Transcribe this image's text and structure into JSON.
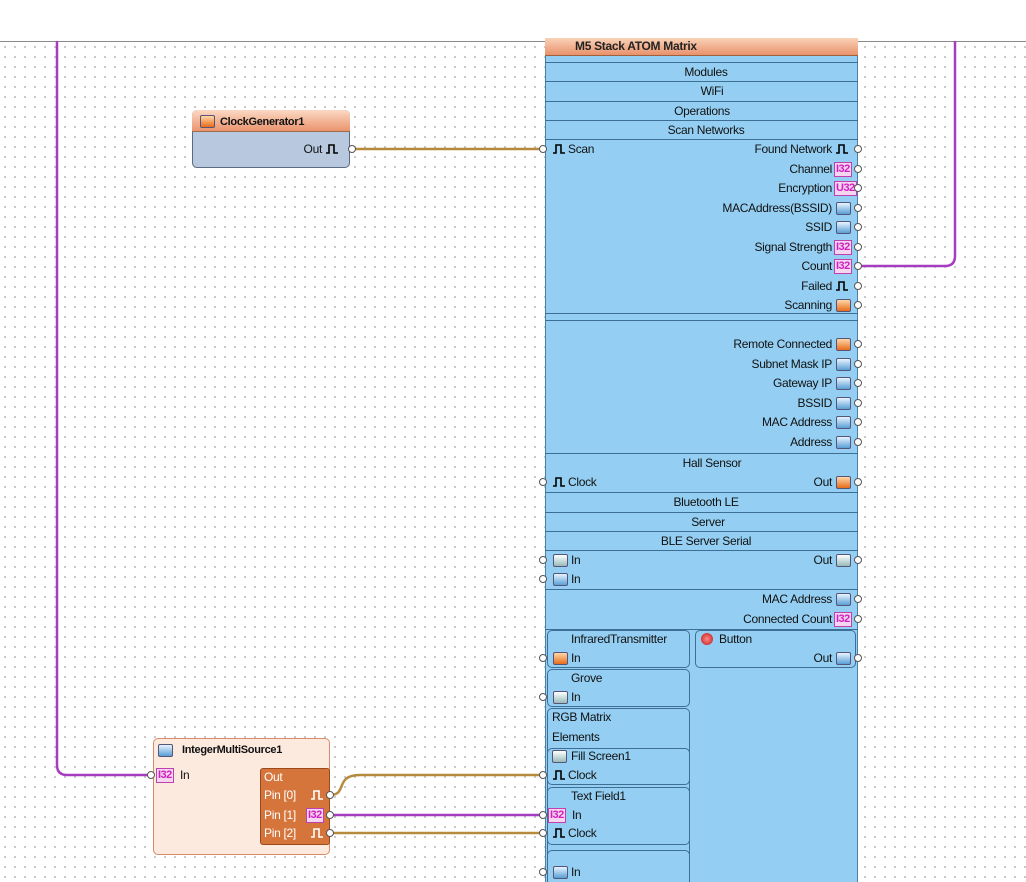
{
  "atom": {
    "title": "M5 Stack ATOM Matrix",
    "modules": "Modules",
    "wifi": "WiFi",
    "operations": "Operations",
    "scan_networks": "Scan Networks",
    "scan_in": "Scan",
    "scan_outputs": [
      {
        "label": "Found Network"
      },
      {
        "label": "Channel",
        "badge": "I32"
      },
      {
        "label": "Encryption",
        "badge": "U32"
      },
      {
        "label": "MACAddress(BSSID)"
      },
      {
        "label": "SSID"
      },
      {
        "label": "Signal Strength",
        "badge": "I32"
      },
      {
        "label": "Count",
        "badge": "I32"
      },
      {
        "label": "Failed"
      },
      {
        "label": "Scanning"
      }
    ],
    "wifi_outputs": [
      {
        "label": "Remote Connected"
      },
      {
        "label": "Subnet Mask IP"
      },
      {
        "label": "Gateway IP"
      },
      {
        "label": "BSSID"
      },
      {
        "label": "MAC Address"
      },
      {
        "label": "Address"
      }
    ],
    "hall_sensor": {
      "title": "Hall Sensor",
      "in": "Clock",
      "out": "Out"
    },
    "bluetooth": "Bluetooth LE",
    "server": "Server",
    "ble_serial": {
      "title": "BLE Server Serial",
      "in1": "In",
      "out": "Out",
      "in2": "In"
    },
    "ble_outputs": [
      {
        "label": "MAC Address"
      },
      {
        "label": "Connected Count",
        "badge": "I32"
      }
    ],
    "infrared": {
      "title": "InfraredTransmitter",
      "in": "In"
    },
    "button": {
      "title": "Button",
      "out": "Out"
    },
    "grove": {
      "title": "Grove",
      "in": "In"
    },
    "rgb_matrix": "RGB Matrix",
    "elements": "Elements",
    "fill_screen": {
      "title": "Fill Screen1",
      "in": "Clock"
    },
    "text_field": {
      "title": "Text Field1",
      "in1": "In",
      "in1_badge": "I32",
      "in2": "Clock"
    },
    "last_in": "In"
  },
  "clock_generator": {
    "title": "ClockGenerator1",
    "out": "Out"
  },
  "integer_multi_source": {
    "title": "IntegerMultiSource1",
    "in": "In",
    "in_badge": "I32",
    "out": "Out",
    "pins": [
      {
        "label": "Pin [0]"
      },
      {
        "label": "Pin [1]",
        "badge": "I32"
      },
      {
        "label": "Pin [2]"
      }
    ]
  }
}
